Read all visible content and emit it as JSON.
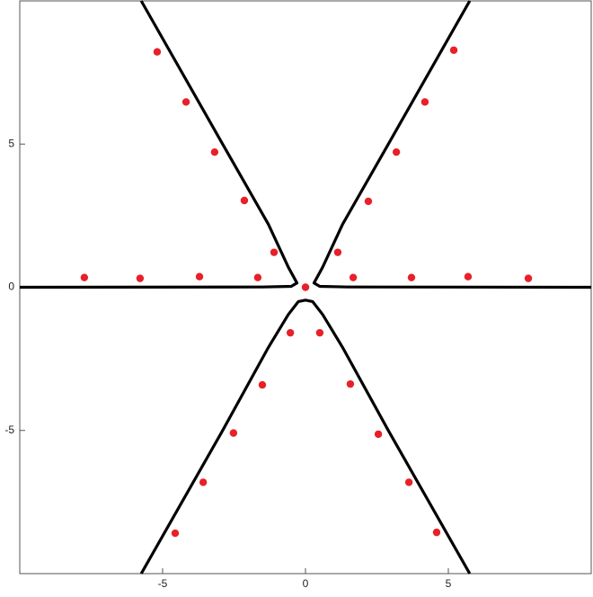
{
  "chart_data": {
    "type": "scatter",
    "xlim": [
      -10,
      10
    ],
    "ylim": [
      -10,
      10
    ],
    "xticks": [
      -5,
      0,
      5
    ],
    "yticks": [
      -5,
      0,
      5
    ],
    "series": [
      {
        "type": "line",
        "color": "#000000",
        "x": [
          -5.75,
          -2.9,
          -1.3,
          -0.6,
          -0.3,
          -0.5,
          -1.5,
          -10
        ],
        "values": [
          10,
          5,
          2.2,
          0.7,
          0.15,
          0.03,
          0.01,
          0
        ]
      },
      {
        "type": "line",
        "color": "#000000",
        "x": [
          5.75,
          2.9,
          1.3,
          0.6,
          0.3,
          0.5,
          1.5,
          10
        ],
        "values": [
          10,
          5,
          2.2,
          0.7,
          0.15,
          0.03,
          0.01,
          0
        ]
      },
      {
        "type": "line",
        "color": "#000000",
        "x": [
          -5.75,
          -2.9,
          -1.3,
          -0.6,
          -0.25,
          0,
          0.25,
          0.6,
          1.3,
          2.9,
          5.75
        ],
        "values": [
          -10,
          -5,
          -2.1,
          -0.95,
          -0.5,
          -0.45,
          -0.5,
          -0.95,
          -2.1,
          -5,
          -10
        ]
      },
      {
        "type": "scatter",
        "color": "#e8202a",
        "x": [
          -5.19,
          -4.18,
          -3.18,
          -2.14,
          -1.1,
          0,
          1.13,
          2.2,
          3.18,
          4.18,
          5.19,
          -7.74,
          -5.79,
          -3.71,
          -1.67,
          1.67,
          3.71,
          5.69,
          7.8,
          -0.53,
          0.5,
          -1.51,
          1.57,
          -2.52,
          2.55,
          -3.58,
          3.62,
          -4.56,
          4.59
        ],
        "values": [
          8.22,
          6.47,
          4.72,
          3.03,
          1.22,
          0,
          1.22,
          3.0,
          4.72,
          6.47,
          8.28,
          0.34,
          0.31,
          0.37,
          0.34,
          0.34,
          0.34,
          0.37,
          0.31,
          -1.59,
          -1.59,
          -3.41,
          -3.38,
          -5.09,
          -5.13,
          -6.81,
          -6.81,
          -8.59,
          -8.56
        ]
      }
    ]
  }
}
